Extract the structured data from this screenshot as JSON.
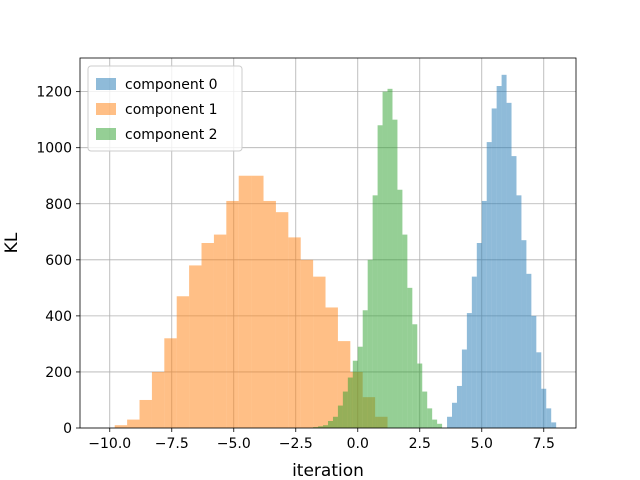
{
  "chart_data": {
    "type": "histogram",
    "xlabel": "iteration",
    "ylabel": "KL",
    "xlim": [
      -11.2,
      8.8
    ],
    "ylim": [
      0,
      1320
    ],
    "xticks": [
      -10.0,
      -7.5,
      -5.0,
      -2.5,
      0.0,
      2.5,
      5.0,
      7.5
    ],
    "xtick_labels": [
      "−10.0",
      "−7.5",
      "−5.0",
      "−2.5",
      "0.0",
      "2.5",
      "5.0",
      "7.5"
    ],
    "yticks": [
      0,
      200,
      400,
      600,
      800,
      1000,
      1200
    ],
    "ytick_labels": [
      "0",
      "200",
      "400",
      "600",
      "800",
      "1000",
      "1200"
    ],
    "grid": true,
    "legend_position": "upper-left",
    "series": [
      {
        "name": "component 0",
        "color": "#1f77b4",
        "alpha": 0.5,
        "bin_start": 3.6,
        "bin_width": 0.2,
        "counts": [
          40,
          90,
          150,
          280,
          410,
          540,
          660,
          810,
          1020,
          1140,
          1220,
          1260,
          1160,
          970,
          830,
          670,
          550,
          400,
          270,
          140,
          70,
          20
        ]
      },
      {
        "name": "component 1",
        "color": "#ff7f0e",
        "alpha": 0.5,
        "bin_start": -9.8,
        "bin_width": 0.5,
        "counts": [
          10,
          30,
          100,
          200,
          320,
          470,
          580,
          660,
          690,
          810,
          900,
          900,
          810,
          770,
          680,
          600,
          540,
          430,
          310,
          200,
          110,
          40
        ]
      },
      {
        "name": "component 2",
        "color": "#2ca02c",
        "alpha": 0.5,
        "bin_start": -1.8,
        "bin_width": 0.2,
        "counts": [
          3,
          6,
          10,
          25,
          40,
          80,
          130,
          180,
          240,
          290,
          420,
          600,
          830,
          1080,
          1200,
          1210,
          1100,
          850,
          690,
          500,
          370,
          230,
          130,
          70,
          30,
          15
        ]
      }
    ]
  }
}
